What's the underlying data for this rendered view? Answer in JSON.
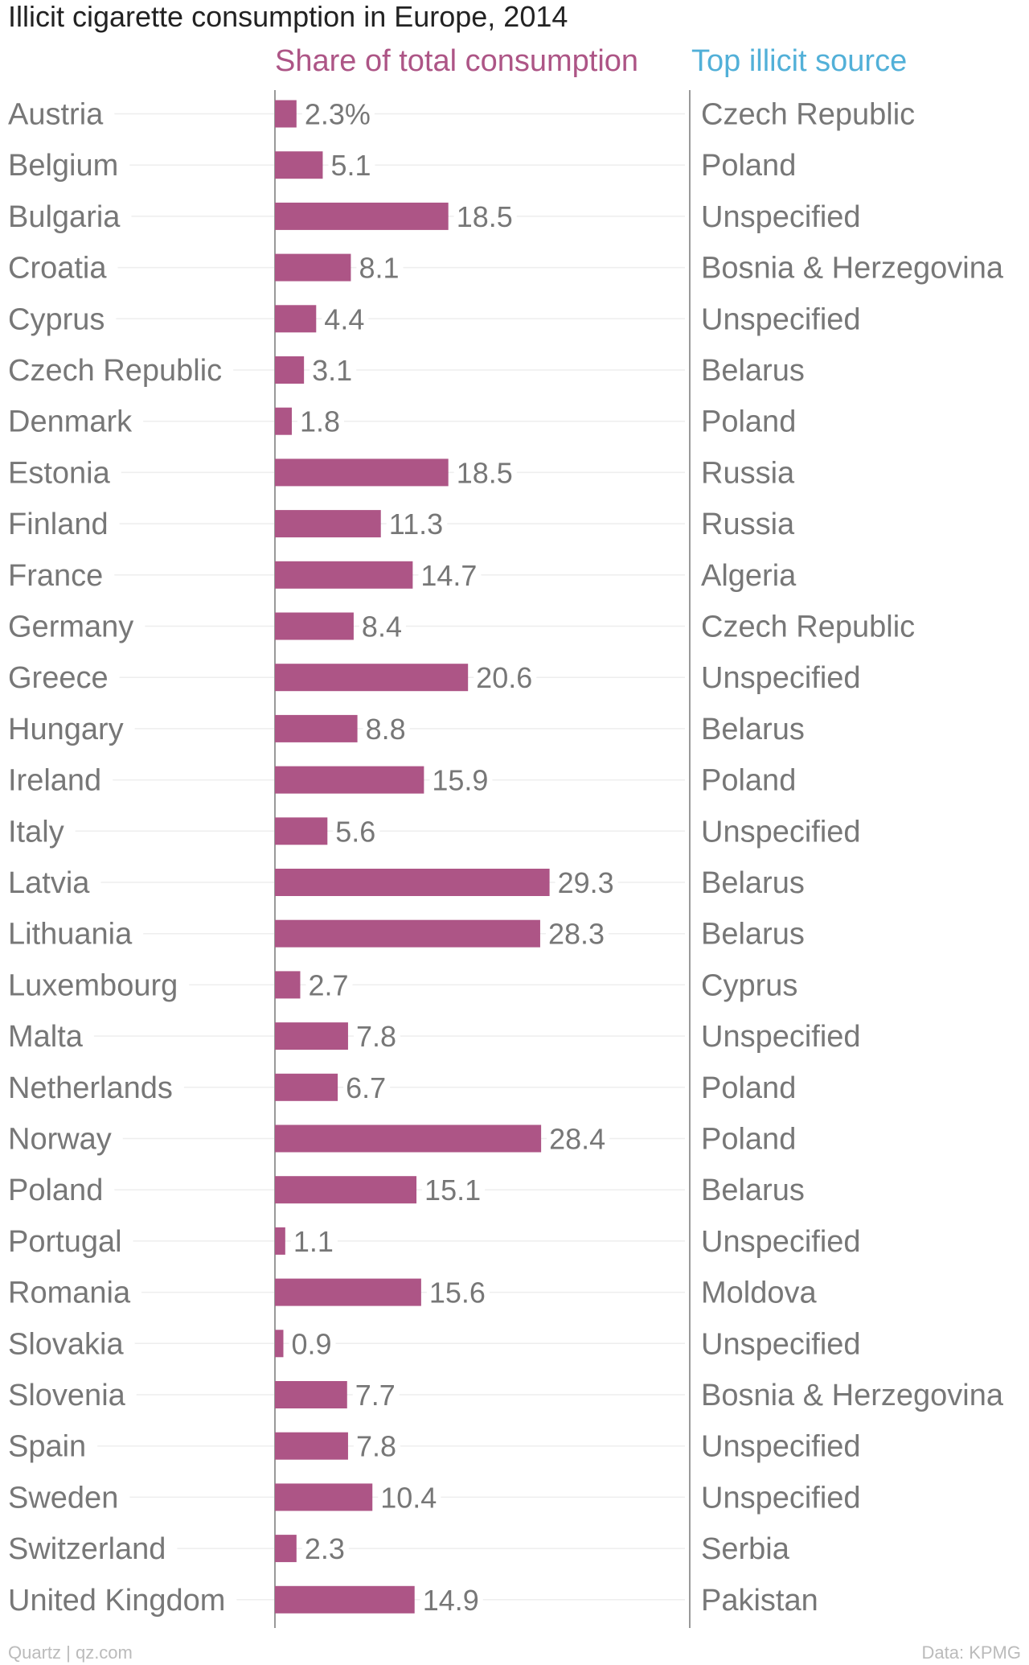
{
  "chart_data": {
    "type": "bar",
    "title": "Illicit cigarette consumption in Europe, 2014",
    "value_header": "Share of total consumption",
    "source_header": "Top illicit source",
    "unit_suffix": "%",
    "categories": [
      "Austria",
      "Belgium",
      "Bulgaria",
      "Croatia",
      "Cyprus",
      "Czech Republic",
      "Denmark",
      "Estonia",
      "Finland",
      "France",
      "Germany",
      "Greece",
      "Hungary",
      "Ireland",
      "Italy",
      "Latvia",
      "Lithuania",
      "Luxembourg",
      "Malta",
      "Netherlands",
      "Norway",
      "Poland",
      "Portugal",
      "Romania",
      "Slovakia",
      "Slovenia",
      "Spain",
      "Sweden",
      "Switzerland",
      "United Kingdom"
    ],
    "series": [
      {
        "values": [
          2.3,
          5.1,
          18.5,
          8.1,
          4.4,
          3.1,
          1.8,
          18.5,
          11.3,
          14.7,
          8.4,
          20.6,
          8.8,
          15.9,
          5.6,
          29.3,
          28.3,
          2.7,
          7.8,
          6.7,
          28.4,
          15.1,
          1.1,
          15.6,
          0.9,
          7.7,
          7.8,
          10.4,
          2.3,
          14.9
        ]
      }
    ],
    "sources": [
      "Czech Republic",
      "Poland",
      "Unspecified",
      "Bosnia & Herzegovina",
      "Unspecified",
      "Belarus",
      "Poland",
      "Russia",
      "Russia",
      "Algeria",
      "Czech Republic",
      "Unspecified",
      "Belarus",
      "Poland",
      "Unspecified",
      "Belarus",
      "Belarus",
      "Cyprus",
      "Unspecified",
      "Poland",
      "Poland",
      "Belarus",
      "Unspecified",
      "Moldova",
      "Unspecified",
      "Bosnia & Herzegovina",
      "Unspecified",
      "Unspecified",
      "Serbia",
      "Pakistan"
    ],
    "xlim": [
      0,
      44
    ],
    "grid": false,
    "credit_left": "Quartz | qz.com",
    "credit_right": "Data: KPMG"
  },
  "colors": {
    "bar": "#ad5586",
    "value_header": "#ad5586",
    "source_header": "#52b0d8",
    "title": "#222222",
    "label": "#777777",
    "guide": "#eeeeee",
    "axis": "#999999",
    "credit": "#bbbbbb"
  }
}
